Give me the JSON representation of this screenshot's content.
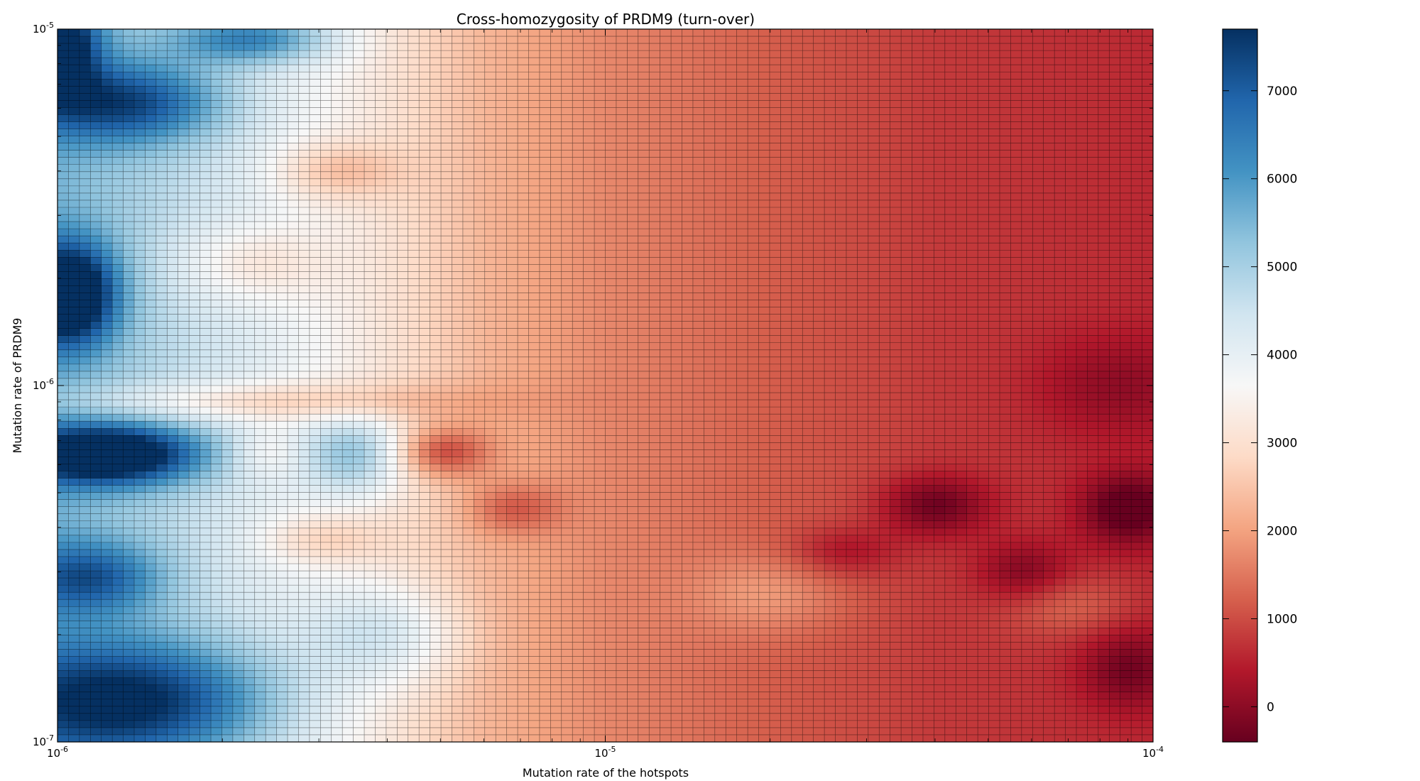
{
  "chart_data": {
    "type": "heatmap",
    "title": "Cross-homozygosity of PRDM9 (turn-over)",
    "xlabel": "Mutation rate of the hotspots",
    "ylabel": "Mutation rate of PRDM9",
    "x_scale": "log",
    "y_scale": "log",
    "xlim": [
      1e-06,
      0.0001
    ],
    "ylim": [
      1e-07,
      1e-05
    ],
    "x_ticks": [
      {
        "value": 1e-06,
        "base": "10",
        "exp": "-6"
      },
      {
        "value": 1e-05,
        "base": "10",
        "exp": "-5"
      },
      {
        "value": 0.0001,
        "base": "10",
        "exp": "-4"
      }
    ],
    "y_ticks": [
      {
        "value": 1e-07,
        "base": "10",
        "exp": "-7"
      },
      {
        "value": 1e-06,
        "base": "10",
        "exp": "-6"
      },
      {
        "value": 1e-05,
        "base": "10",
        "exp": "-5"
      }
    ],
    "colormap": "RdBu",
    "colormap_stops": [
      "#67001f",
      "#b2182b",
      "#d6604d",
      "#f4a582",
      "#fddbc7",
      "#f7f7f7",
      "#d1e5f0",
      "#92c5de",
      "#4393c3",
      "#2166ac",
      "#053061"
    ],
    "color_range": [
      -400,
      7700
    ],
    "colorbar_ticks": [
      {
        "value": 0,
        "label": "0"
      },
      {
        "value": 1000,
        "label": "1000"
      },
      {
        "value": 2000,
        "label": "2000"
      },
      {
        "value": 3000,
        "label": "3000"
      },
      {
        "value": 4000,
        "label": "4000"
      },
      {
        "value": 5000,
        "label": "5000"
      },
      {
        "value": 6000,
        "label": "6000"
      },
      {
        "value": 7000,
        "label": "7000"
      }
    ],
    "grid": {
      "columns": 100,
      "rows": 100,
      "cell_borders": true,
      "border_color": "#000000"
    },
    "value_field": {
      "description_free": true,
      "base_points": [
        {
          "x": 1e-06,
          "base": 5500
        },
        {
          "x": 2.2e-06,
          "base": 4200
        },
        {
          "x": 3.5e-06,
          "base": 3400
        },
        {
          "x": 6e-06,
          "base": 2300
        },
        {
          "x": 1e-05,
          "base": 1700
        },
        {
          "x": 2e-05,
          "base": 1200
        },
        {
          "x": 4e-05,
          "base": 800
        },
        {
          "x": 0.0001,
          "base": 600
        }
      ],
      "blobs": [
        {
          "x": 1e-06,
          "y": 9e-06,
          "amp": 3500,
          "sx": 0.05,
          "sy": 0.1
        },
        {
          "x": 1.35e-06,
          "y": 6.2e-06,
          "amp": 2500,
          "sx": 0.12,
          "sy": 0.08
        },
        {
          "x": 2.3e-06,
          "y": 9.4e-06,
          "amp": 2200,
          "sx": 0.1,
          "sy": 0.05
        },
        {
          "x": 1.05e-06,
          "y": 1.8e-06,
          "amp": 4000,
          "sx": 0.06,
          "sy": 0.1
        },
        {
          "x": 1.25e-06,
          "y": 6.4e-07,
          "amp": 4000,
          "sx": 0.12,
          "sy": 0.06
        },
        {
          "x": 1.4e-06,
          "y": 1.3e-07,
          "amp": 3000,
          "sx": 0.18,
          "sy": 0.12
        },
        {
          "x": 1.15e-06,
          "y": 2.9e-07,
          "amp": 2000,
          "sx": 0.09,
          "sy": 0.07
        },
        {
          "x": 3.5e-06,
          "y": 6.4e-07,
          "amp": 1800,
          "sx": 0.07,
          "sy": 0.08
        },
        {
          "x": 4e-06,
          "y": 2e-07,
          "amp": 1200,
          "sx": 0.1,
          "sy": 0.1
        },
        {
          "x": 3.2e-06,
          "y": 4e-06,
          "amp": -1100,
          "sx": 0.08,
          "sy": 0.06
        },
        {
          "x": 2.2e-06,
          "y": 2.2e-06,
          "amp": -900,
          "sx": 0.1,
          "sy": 0.08
        },
        {
          "x": 2.3e-06,
          "y": 9e-07,
          "amp": -1200,
          "sx": 0.25,
          "sy": 0.04
        },
        {
          "x": 3e-06,
          "y": 3.7e-07,
          "amp": -900,
          "sx": 0.08,
          "sy": 0.05
        },
        {
          "x": 2.4e-06,
          "y": 6.5e-07,
          "amp": -600,
          "sx": 0.05,
          "sy": 0.05
        },
        {
          "x": 5e-06,
          "y": 6.5e-07,
          "amp": -1700,
          "sx": 0.06,
          "sy": 0.05
        },
        {
          "x": 6.8e-06,
          "y": 4.5e-07,
          "amp": -1000,
          "sx": 0.06,
          "sy": 0.05
        },
        {
          "x": 4e-05,
          "y": 4.6e-07,
          "amp": -1100,
          "sx": 0.07,
          "sy": 0.06
        },
        {
          "x": 9e-05,
          "y": 4.5e-07,
          "amp": -1300,
          "sx": 0.06,
          "sy": 0.07
        },
        {
          "x": 9e-05,
          "y": 1.6e-07,
          "amp": -900,
          "sx": 0.06,
          "sy": 0.08
        },
        {
          "x": 2.7e-05,
          "y": 3.4e-07,
          "amp": -700,
          "sx": 0.07,
          "sy": 0.05
        },
        {
          "x": 5.8e-05,
          "y": 3e-07,
          "amp": -800,
          "sx": 0.06,
          "sy": 0.06
        },
        {
          "x": 8.5e-05,
          "y": 1e-06,
          "amp": -600,
          "sx": 0.1,
          "sy": 0.1
        },
        {
          "x": 2e-05,
          "y": 2.6e-07,
          "amp": 700,
          "sx": 0.1,
          "sy": 0.08
        },
        {
          "x": 7e-05,
          "y": 2.4e-07,
          "amp": 600,
          "sx": 0.08,
          "sy": 0.06
        }
      ]
    }
  }
}
